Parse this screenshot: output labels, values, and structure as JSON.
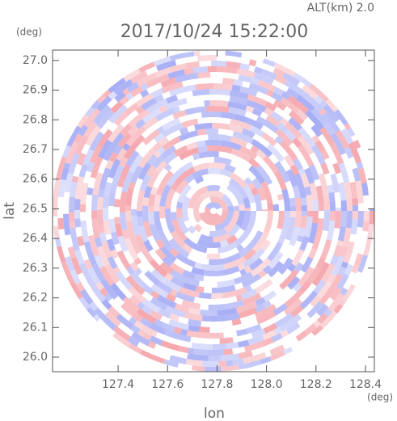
{
  "chart_data": {
    "type": "radar-field",
    "title": "2017/10/24 15:22:00",
    "subtitle": "ALT(km) 2.0",
    "y_unit": "(deg)",
    "x_unit": "(deg)",
    "x_label": "lon",
    "y_label": "lat",
    "xlim": [
      127.135,
      128.436
    ],
    "ylim": [
      25.951,
      27.035
    ],
    "xticks": [
      {
        "value": 127.4,
        "label": "127.4"
      },
      {
        "value": 127.6,
        "label": "127.6"
      },
      {
        "value": 127.8,
        "label": "127.8"
      },
      {
        "value": 128.0,
        "label": "128.0"
      },
      {
        "value": 128.2,
        "label": "128.2"
      },
      {
        "value": 128.4,
        "label": "128.4"
      }
    ],
    "yticks": [
      {
        "value": 26.0,
        "label": "26.0"
      },
      {
        "value": 26.1,
        "label": "26.1"
      },
      {
        "value": 26.2,
        "label": "26.2"
      },
      {
        "value": 26.3,
        "label": "26.3"
      },
      {
        "value": 26.4,
        "label": "26.4"
      },
      {
        "value": 26.5,
        "label": "26.5"
      },
      {
        "value": 26.6,
        "label": "26.6"
      },
      {
        "value": 26.7,
        "label": "26.7"
      },
      {
        "value": 26.8,
        "label": "26.8"
      },
      {
        "value": 26.9,
        "label": "26.9"
      },
      {
        "value": 27.0,
        "label": "27.0"
      }
    ]
  }
}
